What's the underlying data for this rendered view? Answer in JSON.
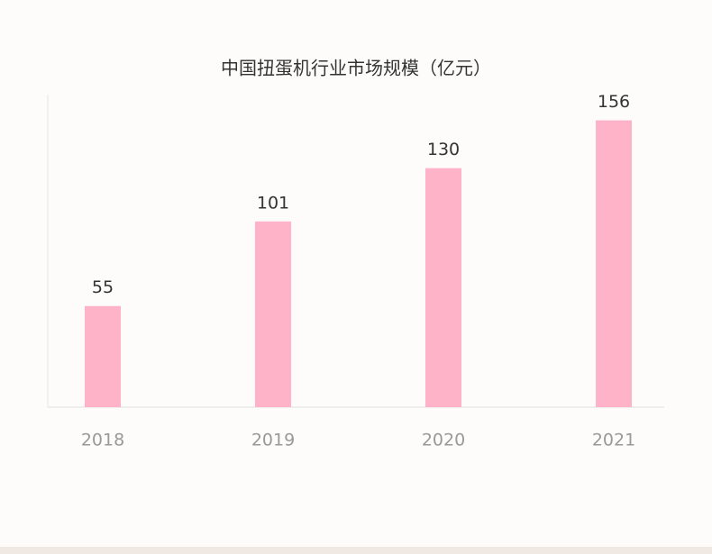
{
  "chart_data": {
    "type": "bar",
    "title": "中国扭蛋机行业市场规模（亿元）",
    "categories": [
      "2018",
      "2019",
      "2020",
      "2021"
    ],
    "values": [
      55,
      101,
      130,
      156
    ],
    "color": "#feb3c9",
    "ylim": [
      0,
      170
    ]
  }
}
